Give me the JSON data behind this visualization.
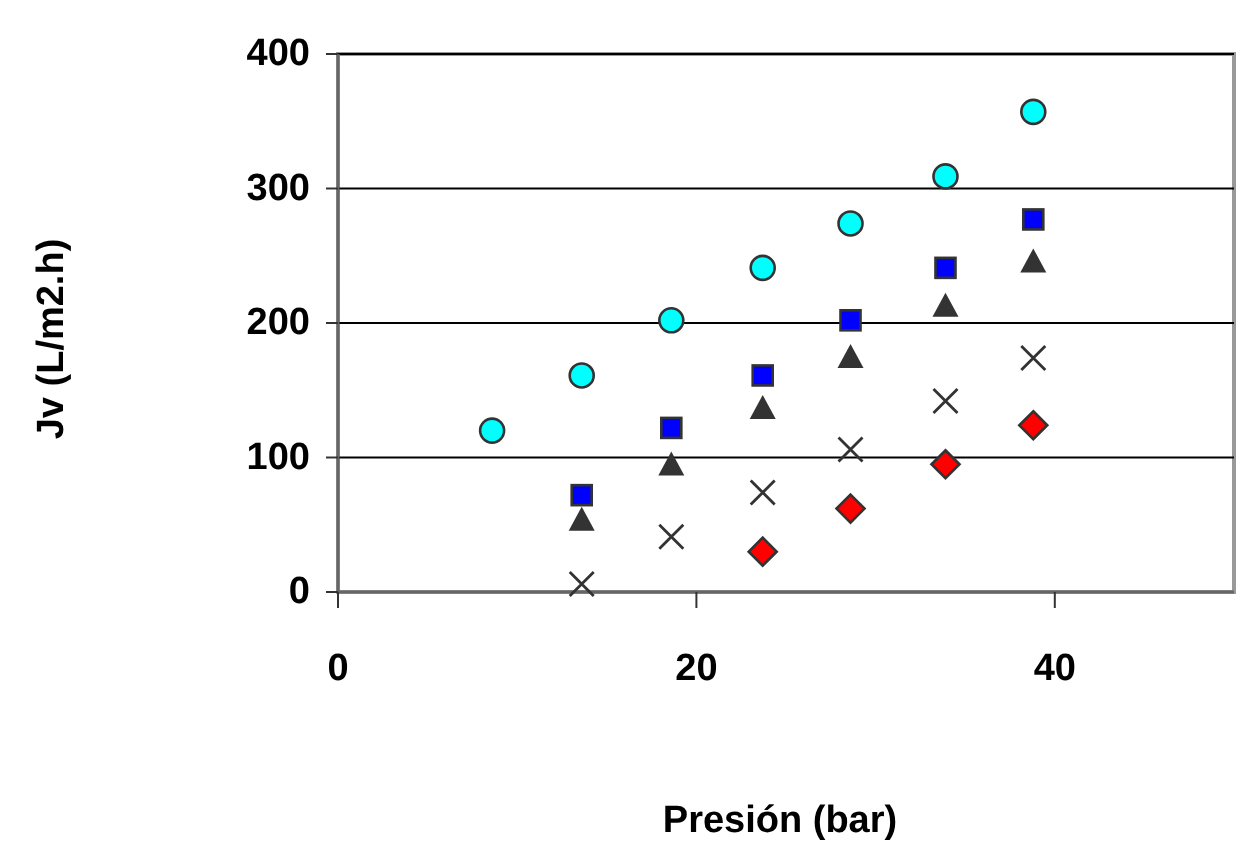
{
  "chart_data": {
    "type": "scatter",
    "xlabel": "Presión (bar)",
    "ylabel": "Jv (L/m2.h)",
    "xlim": [
      0,
      50
    ],
    "xticks": [
      0,
      20,
      40
    ],
    "ylim": [
      0,
      400
    ],
    "yticks": [
      0,
      100,
      200,
      300,
      400
    ],
    "grid": "y",
    "series": [
      {
        "color": "#00ffff",
        "marker": "circle",
        "x": [
          8.6,
          13.6,
          18.6,
          23.7,
          28.6,
          33.9,
          38.8
        ],
        "values": [
          120,
          161,
          202,
          241,
          274,
          309,
          357
        ]
      },
      {
        "color": "#0000ff",
        "marker": "square",
        "x": [
          13.6,
          18.6,
          23.7,
          28.6,
          33.9,
          38.8
        ],
        "values": [
          72,
          122,
          161,
          202,
          241,
          277
        ]
      },
      {
        "color": "#333333",
        "marker": "triangle",
        "x": [
          13.6,
          18.6,
          23.7,
          28.6,
          33.9,
          38.8
        ],
        "values": [
          53,
          94,
          136,
          174,
          212,
          245
        ]
      },
      {
        "color": "#333333",
        "marker": "cross",
        "x": [
          13.6,
          18.6,
          23.7,
          28.6,
          33.9,
          38.8
        ],
        "values": [
          6,
          41,
          74,
          106,
          142,
          174
        ]
      },
      {
        "color": "#ff0000",
        "marker": "diamond",
        "x": [
          23.7,
          28.6,
          33.9,
          38.8
        ],
        "values": [
          30,
          62,
          95,
          124
        ]
      }
    ]
  }
}
